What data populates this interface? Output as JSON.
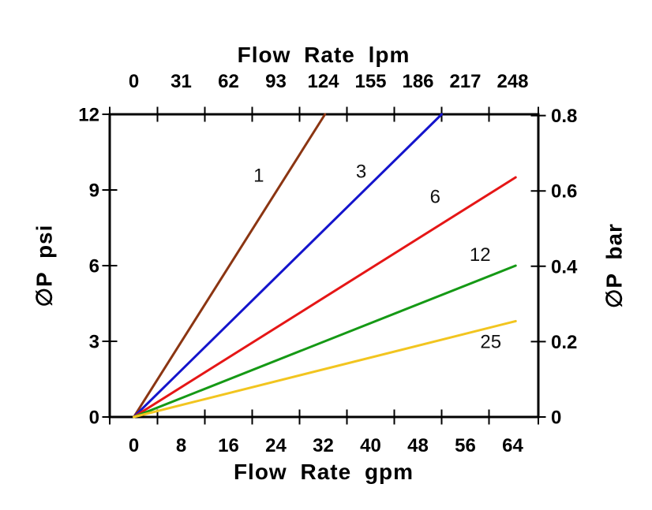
{
  "figure": {
    "background": "#ffffff",
    "text_color": "#000000"
  },
  "chart_data": {
    "type": "line",
    "title": "",
    "grid": false,
    "legend": "none (curves labeled inline)",
    "x_bottom": {
      "label": "Flow Rate gpm",
      "tick_labels": [
        "0",
        "8",
        "16",
        "24",
        "32",
        "40",
        "48",
        "56",
        "64"
      ]
    },
    "x_top": {
      "label": "Flow Rate lpm",
      "tick_labels": [
        "0",
        "31",
        "62",
        "93",
        "124",
        "155",
        "186",
        "217",
        "248"
      ]
    },
    "y_left": {
      "label": "∅P psi",
      "tick_labels": [
        "0",
        "3",
        "6",
        "9",
        "12"
      ],
      "range": [
        0,
        12
      ]
    },
    "y_right": {
      "label": "∅P bar",
      "tick_labels": [
        "0",
        "0.2",
        "0.4",
        "0.6",
        "0.8"
      ],
      "range": [
        0,
        0.8
      ]
    },
    "series": [
      {
        "label": "1",
        "color": "#8B3512",
        "points_gpm_psi": [
          [
            0,
            0
          ],
          [
            32.3,
            12
          ]
        ],
        "label_at_gpm_psi": [
          21.1,
          9.6
        ]
      },
      {
        "label": "3",
        "color": "#1414CC",
        "points_gpm_psi": [
          [
            0,
            0
          ],
          [
            52.0,
            12
          ]
        ],
        "label_at_gpm_psi": [
          38.4,
          9.75
        ]
      },
      {
        "label": "6",
        "color": "#E51616",
        "points_gpm_psi": [
          [
            0,
            0
          ],
          [
            64.5,
            9.5
          ]
        ],
        "label_at_gpm_psi": [
          50.9,
          8.75
        ]
      },
      {
        "label": "12",
        "color": "#159915",
        "points_gpm_psi": [
          [
            0,
            0
          ],
          [
            64.5,
            6.0
          ]
        ],
        "label_at_gpm_psi": [
          58.5,
          6.45
        ]
      },
      {
        "label": "25",
        "color": "#F2C51F",
        "points_gpm_psi": [
          [
            0,
            0
          ],
          [
            64.5,
            3.8
          ]
        ],
        "label_at_gpm_psi": [
          60.3,
          3.0
        ]
      }
    ]
  }
}
